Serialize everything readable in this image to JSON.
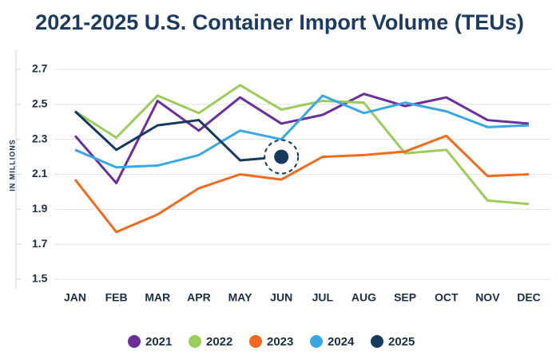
{
  "chart_data": {
    "type": "line",
    "title": "2021-2025 U.S. Container Import Volume (TEUs)",
    "y_label": "IN MILLIONS",
    "categories": [
      "JAN",
      "FEB",
      "MAR",
      "APR",
      "MAY",
      "JUN",
      "JUL",
      "AUG",
      "SEP",
      "OCT",
      "NOV",
      "DEC"
    ],
    "series": [
      {
        "name": "2021",
        "color": "#6b2f9a",
        "values": [
          2.32,
          2.05,
          2.52,
          2.35,
          2.54,
          2.39,
          2.44,
          2.56,
          2.49,
          2.54,
          2.41,
          2.39
        ]
      },
      {
        "name": "2022",
        "color": "#9ccc5a",
        "values": [
          2.46,
          2.31,
          2.55,
          2.45,
          2.61,
          2.47,
          2.52,
          2.51,
          2.22,
          2.24,
          1.95,
          1.93
        ]
      },
      {
        "name": "2023",
        "color": "#f26b1d",
        "values": [
          2.07,
          1.77,
          1.87,
          2.02,
          2.1,
          2.07,
          2.2,
          2.21,
          2.23,
          2.32,
          2.09,
          2.1
        ]
      },
      {
        "name": "2024",
        "color": "#3aa7e5",
        "values": [
          2.24,
          2.14,
          2.15,
          2.21,
          2.35,
          2.3,
          2.55,
          2.45,
          2.51,
          2.46,
          2.37,
          2.38
        ]
      },
      {
        "name": "2025",
        "color": "#16395e",
        "values": [
          2.46,
          2.24,
          2.38,
          2.41,
          2.18,
          2.2,
          null,
          null,
          null,
          null,
          null,
          null
        ]
      }
    ],
    "ylim": [
      1.5,
      2.7
    ],
    "yticks": [
      1.5,
      1.7,
      1.9,
      2.1,
      2.3,
      2.5,
      2.7
    ],
    "grid": true,
    "legend": "bottom"
  }
}
